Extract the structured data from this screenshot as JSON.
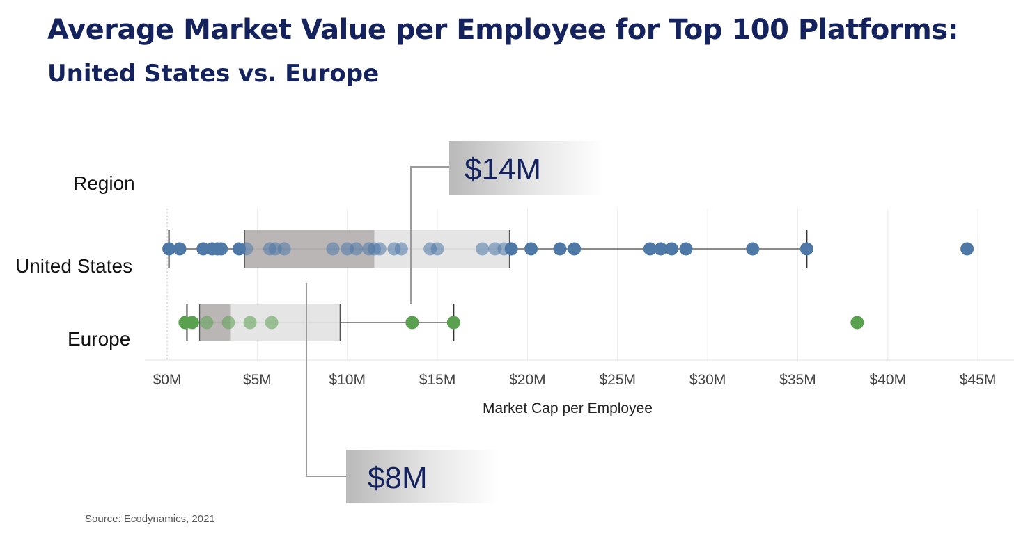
{
  "header": {
    "title": "Average Market Value per Employee for Top 100 Platforms:",
    "subtitle": "United States vs. Europe"
  },
  "footer": {
    "source": "Source: Ecodynamics, 2021"
  },
  "colors": {
    "title": "#14235e",
    "us_points": "#4e79a7",
    "europe_points": "#59a14f",
    "box_dark": "#b4b0b0",
    "box_light": "#e3e3e3",
    "callout_text": "#14235e"
  },
  "chart_data": {
    "type": "box-plot-with-points",
    "xlabel": "Market Cap per Employee",
    "row_header": "Region",
    "xlim": [
      0,
      46
    ],
    "x_ticks": [
      0,
      5,
      10,
      15,
      20,
      25,
      30,
      35,
      40,
      45
    ],
    "x_tick_labels": [
      "$0M",
      "$5M",
      "$10M",
      "$15M",
      "$20M",
      "$25M",
      "$30M",
      "$35M",
      "$40M",
      "$45M"
    ],
    "grid": "vertical",
    "series": [
      {
        "name": "United States",
        "color": "#4e79a7",
        "whisker_low": 0.1,
        "q1": 4.3,
        "median": 11.5,
        "q3": 19.0,
        "whisker_high": 35.5,
        "points": [
          0.1,
          0.7,
          2.0,
          2.5,
          2.8,
          3.0,
          4.0,
          4.4,
          5.7,
          6.0,
          6.5,
          9.2,
          10.0,
          10.5,
          11.2,
          11.5,
          11.8,
          12.6,
          13.0,
          14.6,
          15.0,
          17.5,
          18.2,
          18.7,
          19.1,
          20.2,
          21.8,
          22.6,
          26.8,
          27.4,
          28.0,
          28.8,
          32.5,
          35.5,
          44.4
        ]
      },
      {
        "name": "Europe",
        "color": "#59a14f",
        "whisker_low": 1.1,
        "q1": 1.8,
        "median": 3.5,
        "q3": 9.6,
        "whisker_high": 15.9,
        "points": [
          1.0,
          1.4,
          2.2,
          3.4,
          4.6,
          5.8,
          13.6,
          15.9,
          38.3
        ]
      }
    ],
    "annotations": [
      {
        "label": "$14M",
        "region": "United States"
      },
      {
        "label": "$8M",
        "region": "Europe"
      }
    ]
  }
}
